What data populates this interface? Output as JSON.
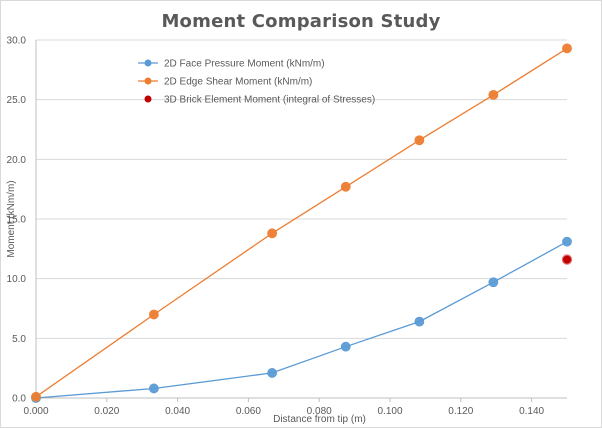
{
  "chart_data": {
    "type": "scatter",
    "title": "Moment  Comparison  Study",
    "xlabel": "Distance from tip (m)",
    "ylabel": "Moment (kNm/m)",
    "xlim": [
      0,
      0.15
    ],
    "ylim": [
      0,
      30
    ],
    "x_ticks": [
      "0.000",
      "0.020",
      "0.040",
      "0.060",
      "0.080",
      "0.100",
      "0.120",
      "0.140"
    ],
    "y_ticks": [
      "0.0",
      "5.0",
      "10.0",
      "15.0",
      "20.0",
      "25.0",
      "30.0"
    ],
    "grid": "horizontal",
    "legend_position": "top-left inside plot",
    "series": [
      {
        "name": "2D Face Pressure Moment (kNm/m)",
        "color": "#5b9bd5",
        "marker_color": "#5b9bd5",
        "line": true,
        "points": [
          [
            0.0,
            0.0
          ],
          [
            0.0333,
            0.8
          ],
          [
            0.0667,
            2.1
          ],
          [
            0.0875,
            4.3
          ],
          [
            0.1083,
            6.4
          ],
          [
            0.1292,
            9.7
          ],
          [
            0.15,
            13.1
          ]
        ]
      },
      {
        "name": "2D Edge Shear Moment (kNm/m)",
        "color": "#ed7d31",
        "marker_color": "#ed7d31",
        "line": true,
        "points": [
          [
            0.0,
            0.1
          ],
          [
            0.0333,
            7.0
          ],
          [
            0.0667,
            13.8
          ],
          [
            0.0875,
            17.7
          ],
          [
            0.1083,
            21.6
          ],
          [
            0.1292,
            25.4
          ],
          [
            0.15,
            29.3
          ]
        ]
      },
      {
        "name": "3D Brick Element Moment (integral of Stresses)",
        "color": "#c00000",
        "marker_color": "#c00000",
        "line": false,
        "points": [
          [
            0.15,
            11.6
          ]
        ]
      }
    ]
  }
}
